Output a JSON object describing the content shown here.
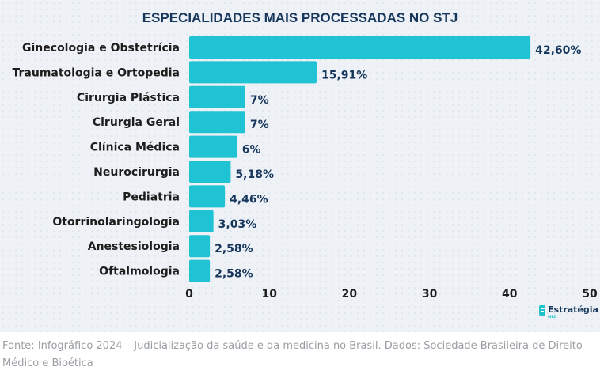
{
  "chart_data": {
    "type": "bar",
    "orientation": "horizontal",
    "title": "ESPECIALIDADES MAIS PROCESSADAS NO STJ",
    "categories": [
      "Ginecologia e Obstetrícia",
      "Traumatologia e Ortopedia",
      "Cirurgia Plástica",
      "Cirurgia Geral",
      "Clínica Médica",
      "Neurocirurgia",
      "Pediatria",
      "Otorrinolaringologia",
      "Anestesiologia",
      "Oftalmologia"
    ],
    "values": [
      42.6,
      15.91,
      7,
      7,
      6,
      5.18,
      4.46,
      3.03,
      2.58,
      2.58
    ],
    "value_labels": [
      "42,60%",
      "15,91%",
      "7%",
      "7%",
      "6%",
      "5,18%",
      "4,46%",
      "3,03%",
      "2,58%",
      "2,58%"
    ],
    "xlim": [
      0,
      50
    ],
    "xticks": [
      0,
      10,
      20,
      30,
      40,
      50
    ],
    "xlabel": "",
    "ylabel": "",
    "grid": false,
    "bar_color": "#1fc3d3"
  },
  "logo": {
    "name": "Estratégia",
    "sub": "MED",
    "icon": "estrategia-logo-icon"
  },
  "source": "Fonte: Infográfico 2024 – Judicialização da saúde e da medicina no Brasil. Dados: Sociedade Brasileira de Direito Médico e Bioética",
  "colors": {
    "bar": "#1fc3d3",
    "title": "#16365c",
    "value_label": "#16365c",
    "background": "#eef2f6",
    "source_text": "#9a9ea3"
  }
}
